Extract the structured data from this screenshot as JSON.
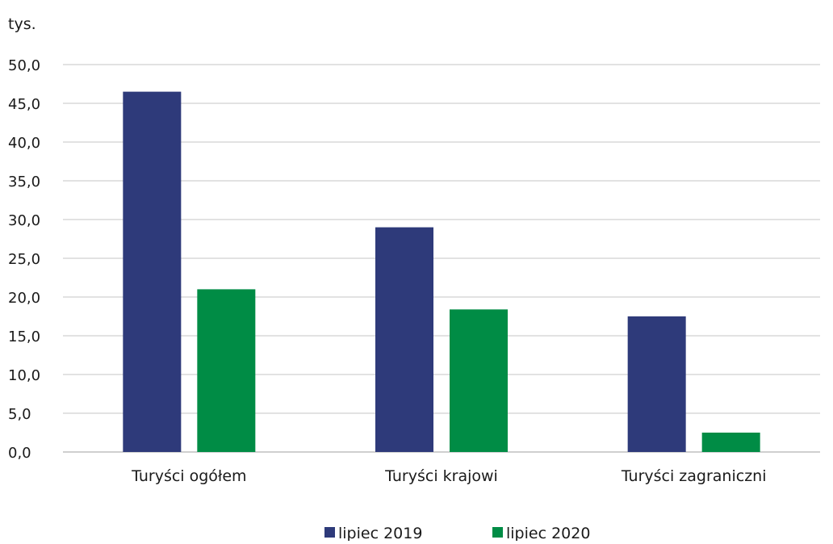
{
  "chart_data": {
    "type": "bar",
    "unit_label": "tys.",
    "categories": [
      "Turyści ogółem",
      "Turyści krajowi",
      "Turyści zagraniczni"
    ],
    "series": [
      {
        "name": "lipiec 2019",
        "color": "#2e3a7a",
        "values": [
          46.5,
          29.0,
          17.5
        ]
      },
      {
        "name": "lipiec 2020",
        "color": "#008c45",
        "values": [
          21.0,
          18.4,
          2.5
        ]
      }
    ],
    "ylim": [
      0,
      50
    ],
    "yticks": [
      "0,0",
      "5,0",
      "10,0",
      "15,0",
      "20,0",
      "25,0",
      "30,0",
      "35,0",
      "40,0",
      "45,0",
      "50,0"
    ],
    "grid": true,
    "legend_position": "bottom"
  }
}
